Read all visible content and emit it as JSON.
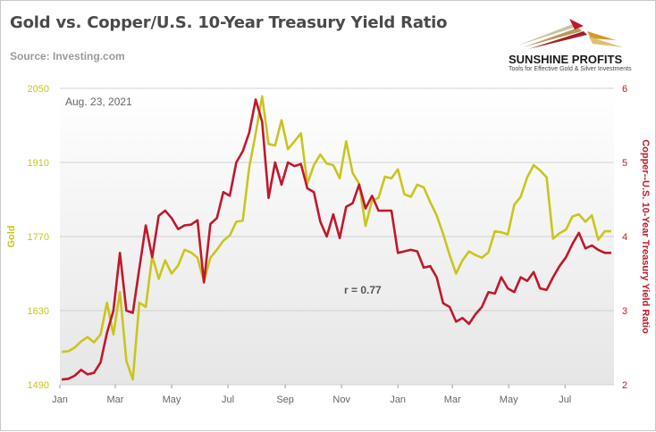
{
  "header": {
    "title": "Gold vs. Copper/U.S. 10-Year Treasury Yield Ratio",
    "source": "Source: Investing.com"
  },
  "logo": {
    "name": "SUNSHINE PROFITS",
    "tagline": "Tools for Effective Gold & Silver Investments"
  },
  "colors": {
    "gold": "#c9c51e",
    "ratio": "#c0182c",
    "plot_bg_top": "#ffffff",
    "plot_bg_bottom": "#e6e6e6",
    "grid": "#d0d0d0",
    "right_axis_text": "#c0182c",
    "left_axis_text": "#c9c51e"
  },
  "chart_data": {
    "type": "line",
    "date_annotation": "Aug. 23, 2021",
    "correlation_annotation": "r = 0.77",
    "x_tick_labels": [
      "Jan",
      "Mar",
      "May",
      "Jul",
      "Sep",
      "Nov",
      "Jan",
      "Mar",
      "May",
      "Jul"
    ],
    "y_left": {
      "label": "Gold",
      "ticks": [
        1490,
        1630,
        1770,
        1910,
        2050
      ],
      "range": [
        1490,
        2050
      ]
    },
    "y_right": {
      "label": "Copper--U.S. 10-Year Treasury Yield Ratio",
      "ticks": [
        2,
        3,
        4,
        5,
        6
      ],
      "range": [
        2,
        6
      ]
    },
    "x_range": [
      "2020-01-01",
      "2021-08-23"
    ],
    "series": [
      {
        "name": "Gold",
        "axis": "left",
        "x": [
          "2020-01-03",
          "2020-01-10",
          "2020-01-17",
          "2020-01-24",
          "2020-01-31",
          "2020-02-07",
          "2020-02-14",
          "2020-02-21",
          "2020-02-28",
          "2020-03-06",
          "2020-03-13",
          "2020-03-20",
          "2020-03-27",
          "2020-04-03",
          "2020-04-10",
          "2020-04-17",
          "2020-04-24",
          "2020-05-01",
          "2020-05-08",
          "2020-05-15",
          "2020-05-22",
          "2020-05-29",
          "2020-06-05",
          "2020-06-12",
          "2020-06-19",
          "2020-06-26",
          "2020-07-03",
          "2020-07-10",
          "2020-07-17",
          "2020-07-24",
          "2020-07-31",
          "2020-08-07",
          "2020-08-14",
          "2020-08-21",
          "2020-08-28",
          "2020-09-04",
          "2020-09-11",
          "2020-09-18",
          "2020-09-25",
          "2020-10-02",
          "2020-10-09",
          "2020-10-16",
          "2020-10-23",
          "2020-10-30",
          "2020-11-06",
          "2020-11-13",
          "2020-11-20",
          "2020-11-27",
          "2020-12-04",
          "2020-12-11",
          "2020-12-18",
          "2020-12-25",
          "2021-01-01",
          "2021-01-08",
          "2021-01-15",
          "2021-01-22",
          "2021-01-29",
          "2021-02-05",
          "2021-02-12",
          "2021-02-19",
          "2021-02-26",
          "2021-03-05",
          "2021-03-12",
          "2021-03-19",
          "2021-03-26",
          "2021-04-02",
          "2021-04-09",
          "2021-04-16",
          "2021-04-23",
          "2021-04-30",
          "2021-05-07",
          "2021-05-14",
          "2021-05-21",
          "2021-05-28",
          "2021-06-04",
          "2021-06-11",
          "2021-06-18",
          "2021-06-25",
          "2021-07-02",
          "2021-07-09",
          "2021-07-16",
          "2021-07-23",
          "2021-07-30",
          "2021-08-06",
          "2021-08-13",
          "2021-08-20"
        ],
        "values": [
          1552,
          1553,
          1560,
          1572,
          1580,
          1570,
          1585,
          1645,
          1585,
          1665,
          1535,
          1500,
          1645,
          1637,
          1733,
          1690,
          1725,
          1700,
          1715,
          1745,
          1740,
          1730,
          1685,
          1730,
          1745,
          1762,
          1772,
          1798,
          1800,
          1900,
          1965,
          2035,
          1945,
          1942,
          1990,
          1935,
          1950,
          1965,
          1870,
          1905,
          1925,
          1908,
          1905,
          1880,
          1950,
          1890,
          1870,
          1790,
          1838,
          1843,
          1883,
          1880,
          1897,
          1850,
          1845,
          1868,
          1863,
          1835,
          1810,
          1775,
          1735,
          1700,
          1725,
          1742,
          1735,
          1730,
          1740,
          1780,
          1778,
          1774,
          1830,
          1845,
          1882,
          1905,
          1895,
          1882,
          1766,
          1776,
          1783,
          1808,
          1812,
          1798,
          1810,
          1764,
          1780,
          1780
        ]
      },
      {
        "name": "Copper--U.S. 10-Year Treasury Yield Ratio",
        "axis": "right",
        "x": [
          "2020-01-03",
          "2020-01-10",
          "2020-01-17",
          "2020-01-24",
          "2020-01-31",
          "2020-02-07",
          "2020-02-14",
          "2020-02-21",
          "2020-02-28",
          "2020-03-06",
          "2020-03-13",
          "2020-03-20",
          "2020-03-27",
          "2020-04-03",
          "2020-04-10",
          "2020-04-17",
          "2020-04-24",
          "2020-05-01",
          "2020-05-08",
          "2020-05-15",
          "2020-05-22",
          "2020-05-29",
          "2020-06-05",
          "2020-06-12",
          "2020-06-19",
          "2020-06-26",
          "2020-07-03",
          "2020-07-10",
          "2020-07-17",
          "2020-07-24",
          "2020-07-31",
          "2020-08-07",
          "2020-08-14",
          "2020-08-21",
          "2020-08-28",
          "2020-09-04",
          "2020-09-11",
          "2020-09-18",
          "2020-09-25",
          "2020-10-02",
          "2020-10-09",
          "2020-10-16",
          "2020-10-23",
          "2020-10-30",
          "2020-11-06",
          "2020-11-13",
          "2020-11-20",
          "2020-11-27",
          "2020-12-04",
          "2020-12-11",
          "2020-12-18",
          "2020-12-25",
          "2021-01-01",
          "2021-01-08",
          "2021-01-15",
          "2021-01-22",
          "2021-01-29",
          "2021-02-05",
          "2021-02-12",
          "2021-02-19",
          "2021-02-26",
          "2021-03-05",
          "2021-03-12",
          "2021-03-19",
          "2021-03-26",
          "2021-04-02",
          "2021-04-09",
          "2021-04-16",
          "2021-04-23",
          "2021-04-30",
          "2021-05-07",
          "2021-05-14",
          "2021-05-21",
          "2021-05-28",
          "2021-06-04",
          "2021-06-11",
          "2021-06-18",
          "2021-06-25",
          "2021-07-02",
          "2021-07-09",
          "2021-07-16",
          "2021-07-23",
          "2021-07-30",
          "2021-08-06",
          "2021-08-13",
          "2021-08-20"
        ],
        "values": [
          2.07,
          2.08,
          2.12,
          2.2,
          2.14,
          2.16,
          2.3,
          2.7,
          3.0,
          3.78,
          3.0,
          2.97,
          3.57,
          4.15,
          3.72,
          4.28,
          4.35,
          4.25,
          4.1,
          4.15,
          4.16,
          4.22,
          3.38,
          4.17,
          4.25,
          4.6,
          4.55,
          5.0,
          5.15,
          5.4,
          5.85,
          5.55,
          4.52,
          5.0,
          4.7,
          5.0,
          4.95,
          4.98,
          4.65,
          4.6,
          4.2,
          4.0,
          4.3,
          3.98,
          4.4,
          4.45,
          4.7,
          4.38,
          4.55,
          4.35,
          4.35,
          4.35,
          3.78,
          3.8,
          3.82,
          3.8,
          3.58,
          3.6,
          3.45,
          3.1,
          3.05,
          2.85,
          2.9,
          2.82,
          2.95,
          3.05,
          3.25,
          3.23,
          3.45,
          3.3,
          3.25,
          3.45,
          3.4,
          3.52,
          3.3,
          3.28,
          3.45,
          3.6,
          3.72,
          3.9,
          4.05,
          3.84,
          3.88,
          3.82,
          3.78,
          3.78
        ]
      }
    ]
  }
}
